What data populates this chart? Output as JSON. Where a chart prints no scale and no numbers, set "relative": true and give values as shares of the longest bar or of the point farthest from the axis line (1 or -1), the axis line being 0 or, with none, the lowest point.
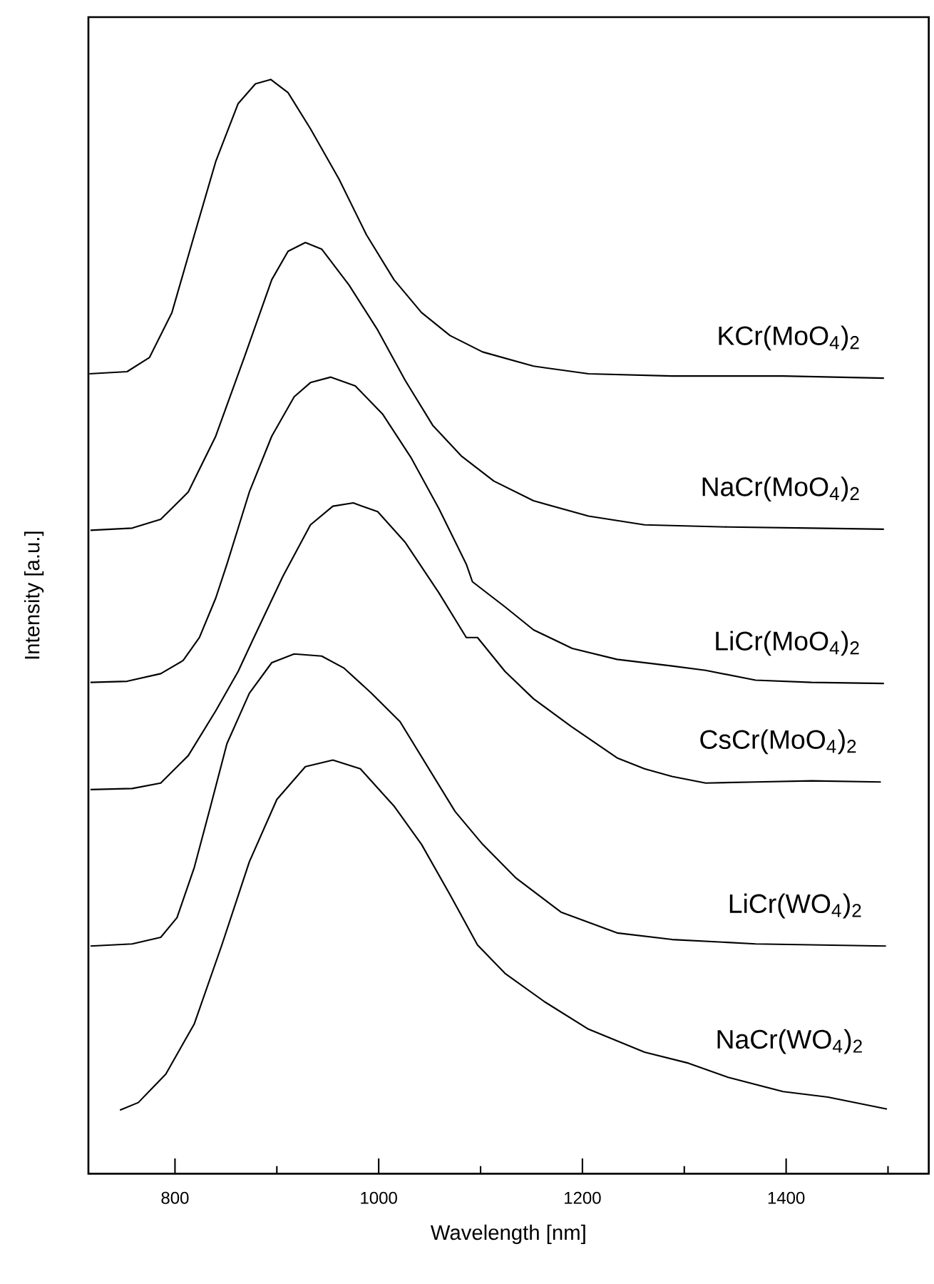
{
  "chart_data": {
    "type": "line",
    "relative": true,
    "xlabel": "Wavelength [nm]",
    "ylabel": "Intensity [a.u.]",
    "xlim": [
      715,
      1540
    ],
    "xticks": [
      800,
      {
        "value": 900,
        "label": null
      },
      1000,
      {
        "value": 1100,
        "label": null
      },
      1200,
      {
        "value": 1300,
        "label": null
      },
      1400,
      {
        "value": 1500,
        "label": null
      }
    ],
    "legend": false,
    "grid": false,
    "marker": "none",
    "line_style": "solid",
    "series": [
      {
        "name": "KCr(MoO$_{4}$)$_{2}$",
        "color": "#000000",
        "x": [
          716,
          753,
          775,
          797,
          819,
          840,
          862,
          879,
          894,
          911,
          933,
          961,
          988,
          1015,
          1042,
          1070,
          1102,
          1152,
          1206,
          1288,
          1397,
          1496
        ],
        "values": [
          0.731,
          0.733,
          0.746,
          0.787,
          0.858,
          0.925,
          0.978,
          0.996,
          1.0,
          0.988,
          0.955,
          0.909,
          0.858,
          0.817,
          0.787,
          0.766,
          0.751,
          0.738,
          0.731,
          0.729,
          0.729,
          0.727
        ]
      },
      {
        "name": "NaCr(MoO$_{4}$)$_{2}$",
        "color": "#000000",
        "x": [
          717,
          758,
          786,
          813,
          840,
          868,
          895,
          911,
          928,
          944,
          971,
          999,
          1026,
          1053,
          1081,
          1113,
          1152,
          1206,
          1261,
          1343,
          1425,
          1496
        ],
        "values": [
          0.588,
          0.59,
          0.598,
          0.623,
          0.674,
          0.746,
          0.817,
          0.843,
          0.851,
          0.845,
          0.812,
          0.771,
          0.725,
          0.684,
          0.656,
          0.633,
          0.615,
          0.601,
          0.593,
          0.591,
          0.59,
          0.589
        ]
      },
      {
        "name": "LiCr(MoO$_{4}$)$_{2}$",
        "color": "#000000",
        "x": [
          717,
          753,
          786,
          808,
          824,
          840,
          851,
          873,
          895,
          917,
          933,
          953,
          977,
          1004,
          1032,
          1059,
          1086,
          1092,
          1124,
          1152,
          1190,
          1234,
          1288,
          1321,
          1370,
          1425,
          1496
        ],
        "values": [
          0.449,
          0.45,
          0.457,
          0.469,
          0.49,
          0.526,
          0.557,
          0.623,
          0.674,
          0.71,
          0.723,
          0.728,
          0.72,
          0.694,
          0.654,
          0.608,
          0.557,
          0.541,
          0.518,
          0.497,
          0.48,
          0.47,
          0.464,
          0.46,
          0.451,
          0.449,
          0.448
        ]
      },
      {
        "name": "CsCr(MoO$_{4}$)$_{2}$",
        "color": "#000000",
        "x": [
          717,
          758,
          786,
          813,
          840,
          862,
          876,
          906,
          933,
          955,
          975,
          999,
          1026,
          1059,
          1086,
          1097,
          1124,
          1152,
          1190,
          1234,
          1261,
          1288,
          1321,
          1370,
          1425,
          1493
        ],
        "values": [
          0.351,
          0.352,
          0.357,
          0.382,
          0.423,
          0.459,
          0.487,
          0.546,
          0.593,
          0.61,
          0.613,
          0.605,
          0.577,
          0.531,
          0.49,
          0.49,
          0.459,
          0.434,
          0.408,
          0.38,
          0.37,
          0.363,
          0.357,
          0.358,
          0.359,
          0.358
        ]
      },
      {
        "name": "LiCr(WO$_{4}$)$_{2}$",
        "color": "#000000",
        "x": [
          717,
          758,
          786,
          802,
          819,
          835,
          851,
          873,
          895,
          917,
          944,
          966,
          993,
          1021,
          1048,
          1075,
          1102,
          1135,
          1179,
          1234,
          1288,
          1370,
          1498
        ],
        "values": [
          0.208,
          0.21,
          0.216,
          0.234,
          0.28,
          0.336,
          0.393,
          0.439,
          0.467,
          0.475,
          0.473,
          0.462,
          0.439,
          0.413,
          0.372,
          0.331,
          0.301,
          0.27,
          0.239,
          0.22,
          0.214,
          0.21,
          0.208
        ]
      },
      {
        "name": "NaCr(WO$_{4}$)$_{2}$",
        "color": "#000000",
        "x": [
          746,
          764,
          791,
          819,
          846,
          873,
          900,
          928,
          955,
          982,
          1015,
          1042,
          1070,
          1097,
          1124,
          1163,
          1206,
          1261,
          1304,
          1343,
          1397,
          1441,
          1499
        ],
        "values": [
          0.058,
          0.065,
          0.091,
          0.137,
          0.209,
          0.285,
          0.342,
          0.372,
          0.378,
          0.37,
          0.336,
          0.301,
          0.255,
          0.209,
          0.183,
          0.157,
          0.132,
          0.111,
          0.101,
          0.088,
          0.075,
          0.07,
          0.059
        ]
      }
    ]
  }
}
